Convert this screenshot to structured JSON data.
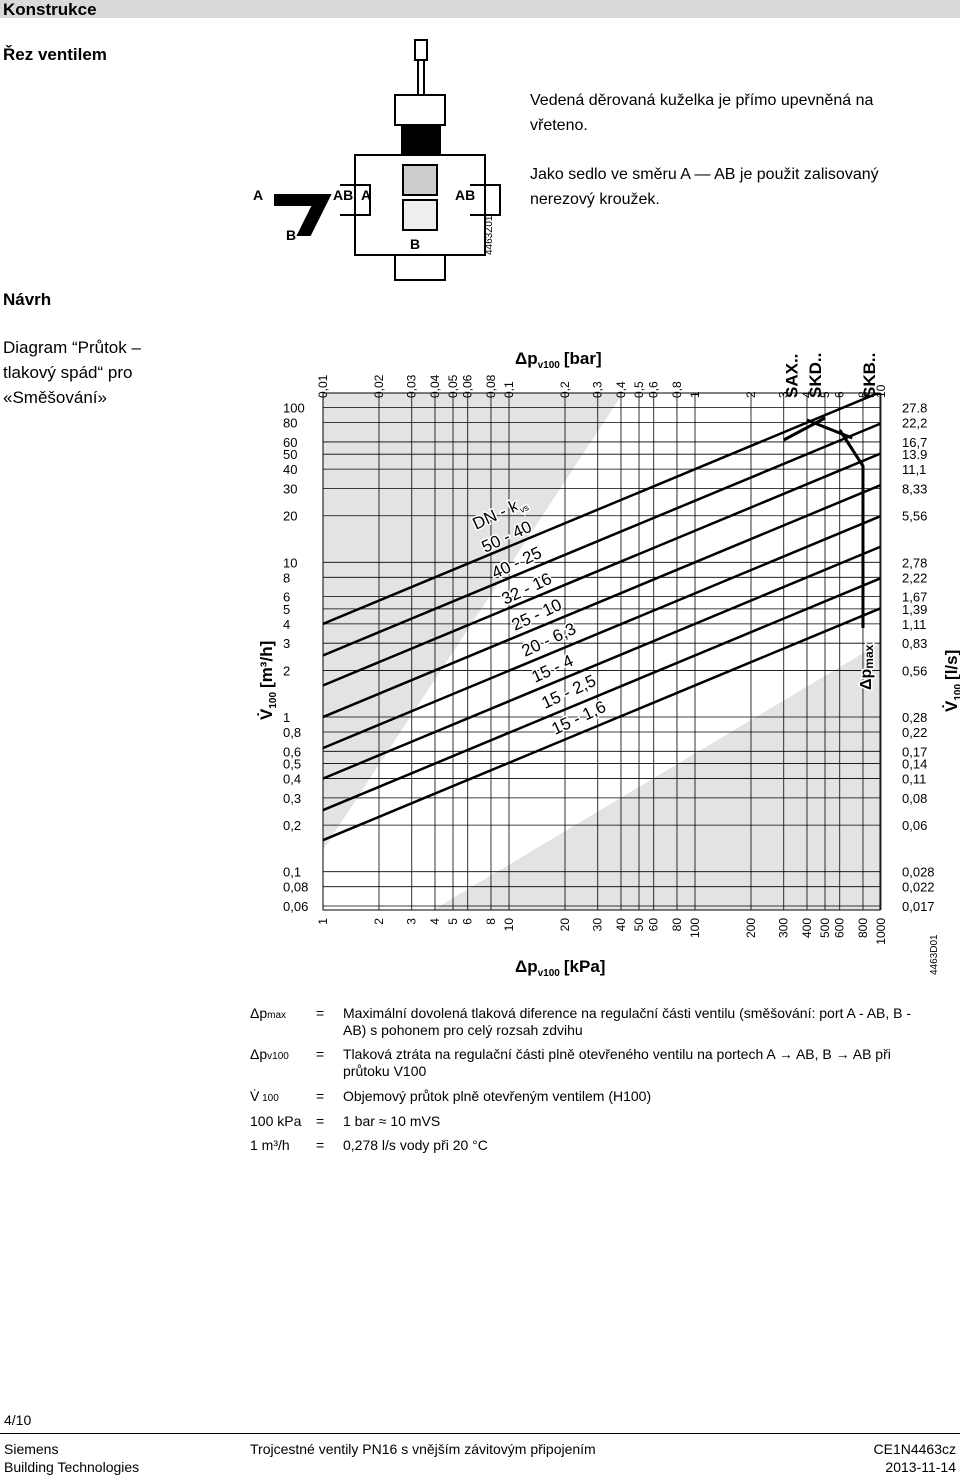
{
  "header": {
    "title": "Konstrukce"
  },
  "section1": {
    "title": "Řez ventilem",
    "figure_labels": [
      "A",
      "AB",
      "A",
      "AB",
      "B",
      "B",
      "4463Z01"
    ],
    "paragraphs": [
      "Vedená děrovaná kuželka je přímo upevněná na vřeteno.",
      "Jako sedlo ve směru A — AB je použit zalisovaný nerezový kroužek."
    ]
  },
  "section2": {
    "title": "Návrh",
    "caption": "Diagram “Průtok – tlakový spád“ pro «Směšování»"
  },
  "diagram": {
    "top_title": [
      "Δp",
      "v100",
      "[bar]"
    ],
    "bottom_title": [
      "Δp",
      "v100",
      "[kPa]"
    ],
    "left_title": [
      "V̇",
      "100",
      "[m³/h]"
    ],
    "right_title": [
      "V̇",
      "100",
      "[l/s]"
    ],
    "kpa_ticks": [
      1,
      2,
      3,
      4,
      5,
      6,
      8,
      10,
      20,
      30,
      40,
      50,
      60,
      80,
      100,
      200,
      300,
      400,
      500,
      600,
      800,
      1000
    ],
    "bar_labels": [
      "0,01",
      "0,02",
      "0,03",
      "0,04",
      "0,05",
      "0,06",
      "0,08",
      "0,1",
      "0,2",
      "0,3",
      "0,4",
      "0,5",
      "0,6",
      "0,8",
      "1",
      "2",
      "3",
      "4",
      "5",
      "6",
      "8",
      "10"
    ],
    "flow_ticks": [
      100,
      80,
      60,
      50,
      40,
      30,
      20,
      10,
      8,
      6,
      5,
      4,
      3,
      2,
      1,
      {
        "value": 0.8,
        "label": "0,8"
      },
      {
        "value": 0.6,
        "label": "0,6"
      },
      {
        "value": 0.5,
        "label": "0,5"
      },
      {
        "value": 0.4,
        "label": "0,4"
      },
      {
        "value": 0.3,
        "label": "0,3"
      },
      {
        "value": 0.2,
        "label": "0,2"
      },
      {
        "value": 0.1,
        "label": "0,1"
      },
      {
        "value": 0.08,
        "label": "0,08"
      },
      {
        "value": 0.06,
        "label": "0,06"
      }
    ],
    "ls_labels": [
      "27.8",
      "22,2",
      "16,7",
      "13.9",
      "11,1",
      "8,33",
      "5,56",
      "2,78",
      "2,22",
      "1,67",
      "1,39",
      "1,11",
      "0,83",
      "0,56",
      "0,28",
      "0,22",
      "0,17",
      "0,14",
      "0,11",
      "0,08",
      "0,06",
      "0,028",
      "0,022",
      "0,017"
    ],
    "kvs_header": [
      "DN - k",
      "vs"
    ],
    "kvs_lines": [
      {
        "label": "50 - 40",
        "kvs": 40
      },
      {
        "label": "40 - 25",
        "kvs": 25
      },
      {
        "label": "32 - 16",
        "kvs": 16
      },
      {
        "label": "25 - 10",
        "kvs": 10
      },
      {
        "label": "20 - 6,3",
        "kvs": 6.3
      },
      {
        "label": "15 - 4",
        "kvs": 4
      },
      {
        "label": "15 - 2,5",
        "kvs": 2.5
      },
      {
        "label": "15 - 1,6",
        "kvs": 1.6
      }
    ],
    "actuators": [
      "SAX..",
      "SKD..",
      "SKB.."
    ],
    "dpmax_label": [
      "Δp",
      "max"
    ],
    "code": "4463D01"
  },
  "legend": [
    {
      "symbol": [
        "Δp",
        "max"
      ],
      "eq": "=",
      "text": "Maximální dovolená tlaková diference na regulační části ventilu (směšování: port A - AB, B - AB) s pohonem pro celý rozsah zdvihu"
    },
    {
      "symbol": [
        "Δp",
        "v100"
      ],
      "eq": "=",
      "text": "Tlaková ztráta na regulační části plně otevřeného ventilu na portech A → AB, B → AB při průtoku V100"
    },
    {
      "symbol": [
        "V̇",
        " 100"
      ],
      "eq": "=",
      "text": "Objemový průtok plně otevřeným ventilem (H100)"
    },
    {
      "symbol": [
        "100 kPa",
        ""
      ],
      "eq": "=",
      "text": "1 bar ≈ 10 mVS"
    },
    {
      "symbol": [
        "1 m³/h",
        ""
      ],
      "eq": "=",
      "text": "0,278 l/s vody při 20 °C"
    }
  ],
  "footer": {
    "page": "4/10",
    "company": "Siemens",
    "division": "Building Technologies",
    "doc_title": "Trojcestné ventily PN16 s vnějším závitovým připojením",
    "doc_code": "CE1N4463cz",
    "date": "2013-11-14"
  }
}
